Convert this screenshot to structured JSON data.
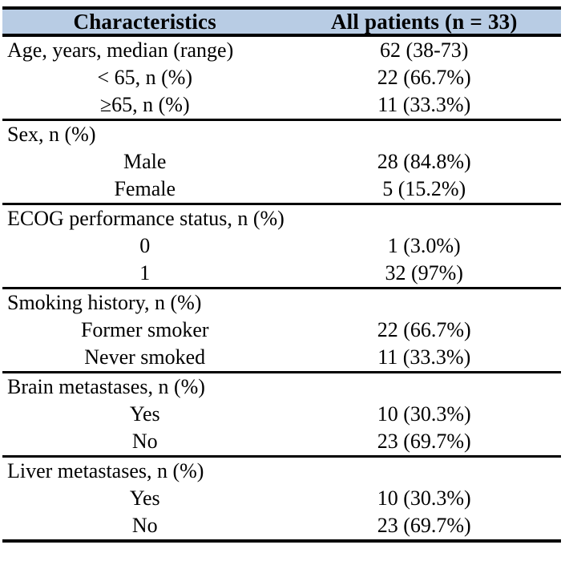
{
  "table": {
    "header": {
      "col1": "Characteristics",
      "col2": "All patients (n = 33)"
    },
    "colors": {
      "header_bg": "#b8cce4",
      "border": "#000000",
      "text": "#000000",
      "page_bg": "#ffffff"
    },
    "sections": [
      {
        "rows": [
          {
            "label": "Age, years, median (range)",
            "value": "62 (38-73)"
          },
          {
            "label": "< 65, n (%)",
            "value": "22 (66.7%)"
          },
          {
            "label": "≥65, n (%)",
            "value": "11 (33.3%)"
          }
        ]
      },
      {
        "rows": [
          {
            "label": "Sex, n (%)",
            "value": ""
          },
          {
            "label": "Male",
            "value": "28 (84.8%)"
          },
          {
            "label": "Female",
            "value": "5 (15.2%)"
          }
        ]
      },
      {
        "rows": [
          {
            "label": "ECOG performance status, n (%)",
            "value": ""
          },
          {
            "label": "0",
            "value": "1 (3.0%)"
          },
          {
            "label": "1",
            "value": "32 (97%)"
          }
        ]
      },
      {
        "rows": [
          {
            "label": "Smoking history, n (%)",
            "value": ""
          },
          {
            "label": "Former smoker",
            "value": "22 (66.7%)"
          },
          {
            "label": "Never smoked",
            "value": "11 (33.3%)"
          }
        ]
      },
      {
        "rows": [
          {
            "label": "Brain metastases, n (%)",
            "value": ""
          },
          {
            "label": "Yes",
            "value": "10 (30.3%)"
          },
          {
            "label": "No",
            "value": "23 (69.7%)"
          }
        ]
      },
      {
        "rows": [
          {
            "label": "Liver metastases, n (%)",
            "value": ""
          },
          {
            "label": "Yes",
            "value": "10 (30.3%)"
          },
          {
            "label": "No",
            "value": "23 (69.7%)"
          }
        ]
      }
    ]
  }
}
